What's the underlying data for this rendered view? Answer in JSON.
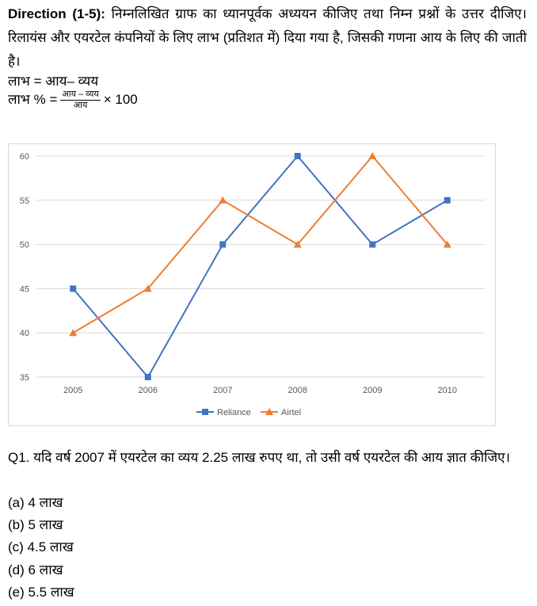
{
  "direction": {
    "label": "Direction (1-5):",
    "text": "निम्नलिखित ग्राफ का ध्यानपूर्वक अध्ययन कीजिए तथा निम्न प्रश्नों के उत्तर दीजिए। रिलायंस और एयरटेल कंपनियों के लिए लाभ (प्रतिशत में) दिया गया है, जिसकी गणना आय के लिए की जाती है।"
  },
  "formula1": "लाभ = आय– व्यय",
  "formula2": {
    "prefix": "लाभ % =",
    "numerator": "आय – व्यय",
    "denominator": "आय",
    "suffix": "× 100"
  },
  "chart_data": {
    "type": "line",
    "title": "",
    "xlabel": "",
    "ylabel": "",
    "categories": [
      "2005",
      "2006",
      "2007",
      "2008",
      "2009",
      "2010"
    ],
    "ylim": [
      35,
      60
    ],
    "yticks": [
      "35",
      "40",
      "45",
      "50",
      "55",
      "60"
    ],
    "grid": true,
    "legend": "bottom",
    "series": [
      {
        "name": "Reliance",
        "values": [
          45,
          35,
          50,
          60,
          50,
          55
        ],
        "color": "#4472c4",
        "marker": "square"
      },
      {
        "name": "Airtel",
        "values": [
          40,
          45,
          55,
          50,
          60,
          50
        ],
        "color": "#ed7d31",
        "marker": "triangle"
      }
    ]
  },
  "question": {
    "text": "Q1. यदि वर्ष 2007 में एयरटेल का व्यय 2.25 लाख रुपए था, तो उसी वर्ष एयरटेल की आय ज्ञात कीजिए।",
    "options": [
      "(a) 4 लाख",
      "(b) 5 लाख",
      "(c) 4.5 लाख",
      "(d) 6 लाख",
      "(e) 5.5 लाख"
    ]
  }
}
